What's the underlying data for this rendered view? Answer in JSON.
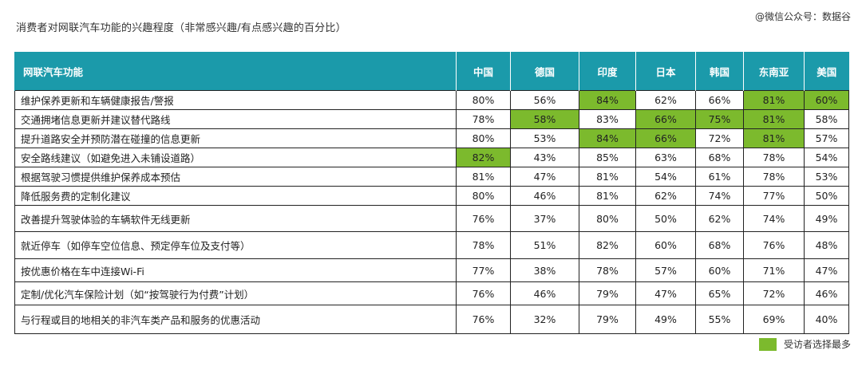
{
  "title": "消费者对网联汽车功能的兴趣程度（非常感兴趣/有点感兴趣的百分比）",
  "watermark": "@微信公众号：数据谷",
  "legend_label": "受访者选择最多",
  "colors": {
    "header": "#1b9aaa",
    "highlight": "#7cba2d",
    "border": "#222222"
  },
  "chart_data": {
    "type": "table",
    "row_header": "网联汽车功能",
    "columns": [
      "中国",
      "德国",
      "印度",
      "日本",
      "韩国",
      "东南亚",
      "美国"
    ],
    "rows": [
      {
        "label": "维护保养更新和车辆健康报告/警报",
        "values": [
          "80%",
          "56%",
          "84%",
          "62%",
          "66%",
          "81%",
          "60%"
        ],
        "highlight": [
          false,
          false,
          true,
          false,
          false,
          true,
          true
        ]
      },
      {
        "label": "交通拥堵信息更新并建议替代路线",
        "values": [
          "78%",
          "58%",
          "83%",
          "66%",
          "75%",
          "81%",
          "58%"
        ],
        "highlight": [
          false,
          true,
          false,
          true,
          true,
          true,
          false
        ]
      },
      {
        "label": "提升道路安全并预防潜在碰撞的信息更新",
        "values": [
          "80%",
          "53%",
          "84%",
          "66%",
          "72%",
          "81%",
          "57%"
        ],
        "highlight": [
          false,
          false,
          true,
          true,
          false,
          true,
          false
        ]
      },
      {
        "label": "安全路线建议（如避免进入未铺设道路）",
        "values": [
          "82%",
          "43%",
          "85%",
          "63%",
          "68%",
          "78%",
          "54%"
        ],
        "highlight": [
          true,
          false,
          false,
          false,
          false,
          false,
          false
        ]
      },
      {
        "label": "根据驾驶习惯提供维护保养成本预估",
        "values": [
          "81%",
          "47%",
          "81%",
          "54%",
          "61%",
          "78%",
          "53%"
        ],
        "highlight": [
          false,
          false,
          false,
          false,
          false,
          false,
          false
        ]
      },
      {
        "label": "降低服务费的定制化建议",
        "values": [
          "80%",
          "46%",
          "81%",
          "62%",
          "74%",
          "77%",
          "50%"
        ],
        "highlight": [
          false,
          false,
          false,
          false,
          false,
          false,
          false
        ]
      },
      {
        "label": "改善提升驾驶体验的车辆软件无线更新",
        "values": [
          "76%",
          "37%",
          "80%",
          "50%",
          "62%",
          "74%",
          "49%"
        ],
        "highlight": [
          false,
          false,
          false,
          false,
          false,
          false,
          false
        ]
      },
      {
        "label": "就近停车（如停车空位信息、预定停车位及支付等）",
        "values": [
          "78%",
          "51%",
          "82%",
          "60%",
          "68%",
          "76%",
          "48%"
        ],
        "highlight": [
          false,
          false,
          false,
          false,
          false,
          false,
          false
        ]
      },
      {
        "label": "按优惠价格在车中连接Wi-Fi",
        "values": [
          "77%",
          "38%",
          "78%",
          "57%",
          "60%",
          "71%",
          "47%"
        ],
        "highlight": [
          false,
          false,
          false,
          false,
          false,
          false,
          false
        ]
      },
      {
        "label": "定制/优化汽车保险计划（如“按驾驶行为付费”计划）",
        "values": [
          "76%",
          "46%",
          "79%",
          "47%",
          "65%",
          "72%",
          "46%"
        ],
        "highlight": [
          false,
          false,
          false,
          false,
          false,
          false,
          false
        ]
      },
      {
        "label": "与行程或目的地相关的非汽车类产品和服务的优惠活动",
        "values": [
          "76%",
          "32%",
          "79%",
          "49%",
          "55%",
          "69%",
          "40%"
        ],
        "highlight": [
          false,
          false,
          false,
          false,
          false,
          false,
          false
        ]
      }
    ]
  }
}
